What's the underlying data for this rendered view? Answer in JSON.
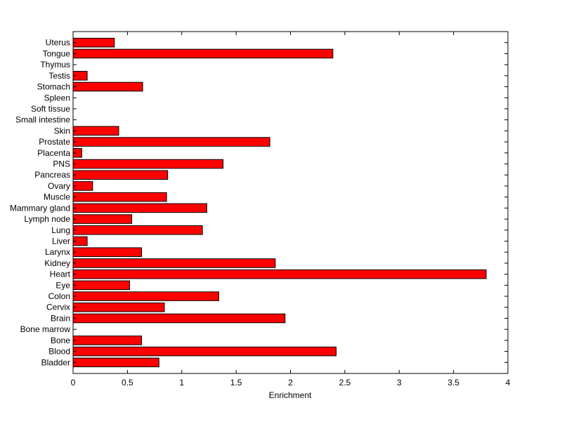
{
  "chart_data": {
    "type": "bar",
    "orientation": "horizontal",
    "title": "",
    "xlabel": "Enrichment",
    "ylabel": "",
    "xlim": [
      0,
      4
    ],
    "xticks": [
      "0",
      "0.5",
      "1",
      "1.5",
      "2",
      "2.5",
      "3",
      "3.5",
      "4"
    ],
    "grid": false,
    "bar_color": "#ff0000",
    "categories": [
      "Bladder",
      "Blood",
      "Bone",
      "Bone marrow",
      "Brain",
      "Cervix",
      "Colon",
      "Eye",
      "Heart",
      "Kidney",
      "Larynx",
      "Liver",
      "Lung",
      "Lymph node",
      "Mammary gland",
      "Muscle",
      "Ovary",
      "Pancreas",
      "PNS",
      "Placenta",
      "Prostate",
      "Skin",
      "Small intestine",
      "Soft tissue",
      "Spleen",
      "Stomach",
      "Testis",
      "Thymus",
      "Tongue",
      "Uterus"
    ],
    "values": [
      0.79,
      2.42,
      0.63,
      0,
      1.95,
      0.84,
      1.34,
      0.52,
      3.8,
      1.86,
      0.63,
      0.13,
      1.19,
      0.54,
      1.23,
      0.86,
      0.18,
      0.87,
      1.38,
      0.08,
      1.81,
      0.42,
      0,
      0,
      0,
      0.64,
      0.13,
      0,
      2.39,
      0.38
    ]
  }
}
